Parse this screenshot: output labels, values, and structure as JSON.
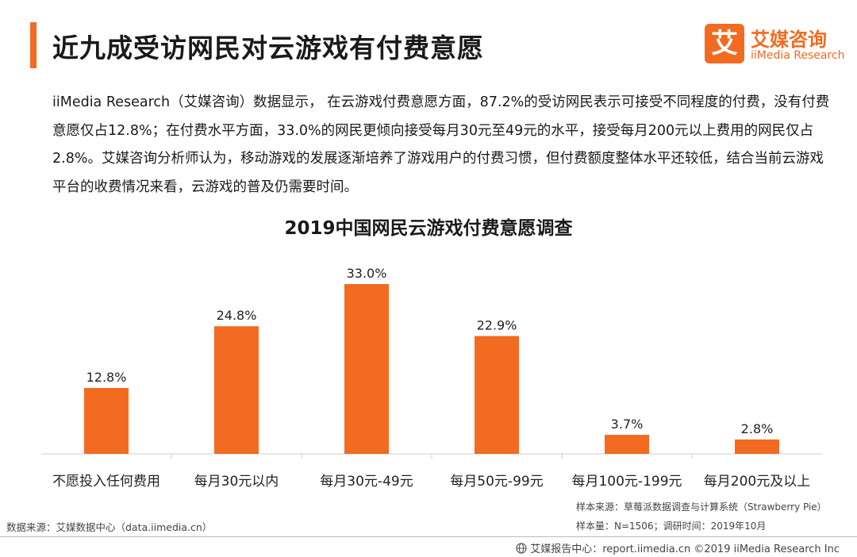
{
  "page_title": "近九成受访网民对云游戏有付费意愿",
  "logo": {
    "mark": "艾",
    "cn": "艾媒咨询",
    "en": "iiMedia Research"
  },
  "intro": "iiMedia Research（艾媒咨询）数据显示， 在云游戏付费意愿方面，87.2%的受访网民表示可接受不同程度的付费，没有付费意愿仅占12.8%；在付费水平方面，33.0%的网民更倾向接受每月30元至49元的水平，接受每月200元以上费用的网民仅占2.8%。艾媒咨询分析师认为，移动游戏的发展逐渐培养了游戏用户的付费习惯，但付费额度整体水平还较低，结合当前云游戏平台的收费情况来看，云游戏的普及仍需要时间。",
  "chart_data": {
    "type": "bar",
    "title": "2019中国网民云游戏付费意愿调查",
    "categories": [
      "不愿投入任何费用",
      "每月30元以内",
      "每月30元-49元",
      "每月50元-99元",
      "每月100元-199元",
      "每月200元及以上"
    ],
    "values": [
      12.8,
      24.8,
      33.0,
      22.9,
      3.7,
      2.8
    ],
    "value_labels": [
      "12.8%",
      "24.8%",
      "33.0%",
      "22.9%",
      "3.7%",
      "2.8%"
    ],
    "ylim": [
      0,
      33.0
    ],
    "grid": false,
    "bar_color": "#f26b21"
  },
  "source": {
    "data_source": "数据来源：艾媒数据中心（data.iimedia.cn）",
    "sample_source": "样本来源：草莓派数据调查与计算系统（Strawberry Pie）",
    "sample_size": "样本量：N=1506；调研时间：2019年10月"
  },
  "footer": "艾媒报告中心：report.iimedia.cn ©2019  iiMedia Research  Inc",
  "colors": {
    "accent": "#f26b21"
  }
}
